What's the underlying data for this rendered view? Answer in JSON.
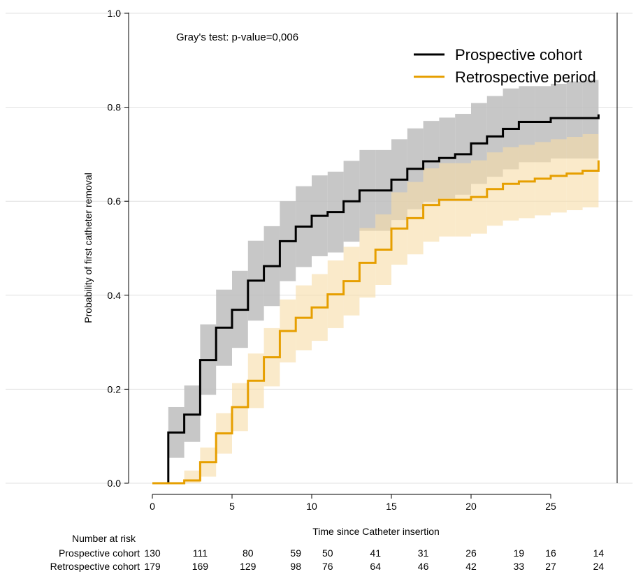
{
  "colors": {
    "prospective_line": "#000000",
    "retrospective_line": "#e69f00",
    "prospective_band": "#bdbdbd",
    "retrospective_band": "#f6dca6",
    "gridline": "#e0e0e0"
  },
  "chart_data": {
    "type": "line",
    "step": true,
    "annotation": "Gray's test: p-value=0,006",
    "xlabel": "Time since Catheter insertion",
    "ylabel": "Probability of first catheter removal",
    "xlim": [
      -1.5,
      29
    ],
    "ylim": [
      0,
      1.0
    ],
    "x_ticks": [
      0,
      5,
      10,
      15,
      20,
      25
    ],
    "y_ticks": [
      "0.0",
      "0.2",
      "0.4",
      "0.6",
      "0.8",
      "1.0"
    ],
    "grid": "horizontal",
    "legend_position": "top-right",
    "series": [
      {
        "name": "Prospective cohort",
        "x": [
          0,
          1,
          2,
          3,
          4,
          5,
          6,
          7,
          8,
          9,
          10,
          11,
          12,
          13,
          14,
          15,
          16,
          17,
          18,
          19,
          20,
          21,
          22,
          23,
          24,
          25,
          26,
          27,
          28
        ],
        "y": [
          0.0,
          0.108,
          0.146,
          0.262,
          0.331,
          0.369,
          0.431,
          0.462,
          0.515,
          0.546,
          0.569,
          0.577,
          0.6,
          0.623,
          0.623,
          0.646,
          0.669,
          0.685,
          0.692,
          0.7,
          0.723,
          0.738,
          0.754,
          0.769,
          0.769,
          0.777,
          0.777,
          0.777,
          0.785
        ],
        "lower": [
          0.0,
          0.054,
          0.088,
          0.188,
          0.25,
          0.288,
          0.346,
          0.377,
          0.43,
          0.46,
          0.483,
          0.491,
          0.514,
          0.537,
          0.537,
          0.56,
          0.583,
          0.599,
          0.606,
          0.614,
          0.637,
          0.652,
          0.668,
          0.683,
          0.683,
          0.691,
          0.691,
          0.691,
          0.699
        ],
        "upper": [
          0.0,
          0.162,
          0.208,
          0.338,
          0.412,
          0.452,
          0.516,
          0.547,
          0.6,
          0.632,
          0.655,
          0.663,
          0.686,
          0.709,
          0.709,
          0.732,
          0.755,
          0.771,
          0.778,
          0.786,
          0.809,
          0.824,
          0.84,
          0.845,
          0.845,
          0.85,
          0.855,
          0.858,
          0.862
        ]
      },
      {
        "name": "Retrospective period",
        "x": [
          0,
          1,
          2,
          3,
          4,
          5,
          6,
          7,
          8,
          9,
          10,
          11,
          12,
          13,
          14,
          15,
          16,
          17,
          18,
          19,
          20,
          21,
          22,
          23,
          24,
          25,
          26,
          27,
          28
        ],
        "y": [
          0.0,
          0.0,
          0.006,
          0.045,
          0.106,
          0.162,
          0.218,
          0.268,
          0.324,
          0.352,
          0.374,
          0.402,
          0.43,
          0.469,
          0.497,
          0.542,
          0.564,
          0.592,
          0.603,
          0.603,
          0.609,
          0.626,
          0.637,
          0.642,
          0.648,
          0.654,
          0.659,
          0.665,
          0.687
        ],
        "lower": [
          0.0,
          0.0,
          0.0,
          0.014,
          0.063,
          0.111,
          0.16,
          0.206,
          0.257,
          0.283,
          0.303,
          0.33,
          0.357,
          0.395,
          0.422,
          0.465,
          0.487,
          0.514,
          0.525,
          0.525,
          0.531,
          0.548,
          0.559,
          0.564,
          0.57,
          0.576,
          0.581,
          0.587,
          0.597
        ],
        "upper": [
          0.0,
          0.0,
          0.027,
          0.076,
          0.149,
          0.213,
          0.276,
          0.33,
          0.391,
          0.421,
          0.445,
          0.474,
          0.503,
          0.543,
          0.572,
          0.619,
          0.641,
          0.67,
          0.681,
          0.681,
          0.687,
          0.704,
          0.715,
          0.72,
          0.726,
          0.732,
          0.737,
          0.743,
          0.74
        ]
      }
    ],
    "risk_table": {
      "header": "Number at risk",
      "times": [
        0,
        3,
        6,
        9,
        11,
        14,
        17,
        20,
        23,
        25,
        28
      ],
      "rows": [
        {
          "label": "Prospective cohort",
          "counts": [
            "130",
            "111",
            "80",
            "59",
            "50",
            "41",
            "31",
            "26",
            "19",
            "16",
            "14"
          ]
        },
        {
          "label": "Retrospective cohort",
          "counts": [
            "179",
            "169",
            "129",
            "98",
            "76",
            "64",
            "46",
            "42",
            "33",
            "27",
            "24"
          ]
        }
      ]
    }
  }
}
